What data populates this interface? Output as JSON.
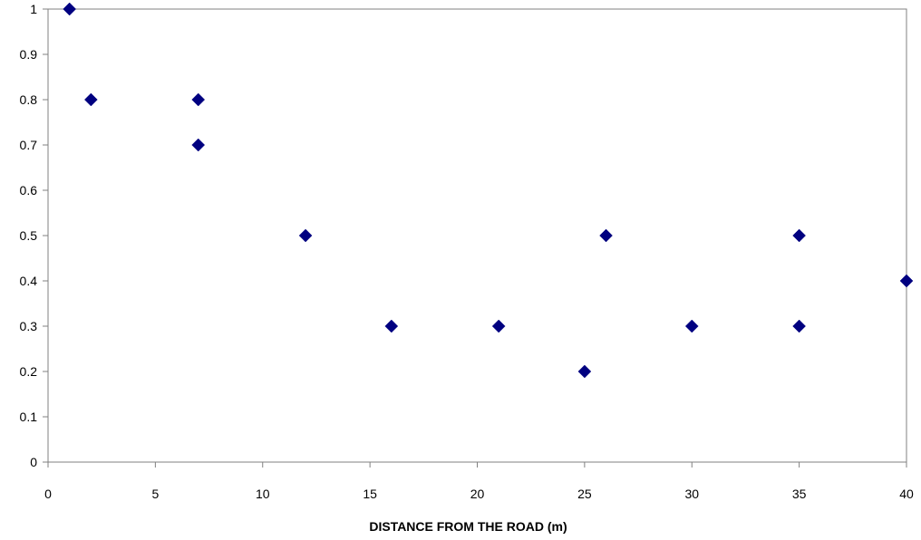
{
  "chart_data": {
    "type": "scatter",
    "title": "",
    "xlabel": "DISTANCE  FROM THE ROAD (m)",
    "ylabel": "",
    "xlim": [
      0,
      40
    ],
    "ylim": [
      0,
      1
    ],
    "xticks": [
      0,
      5,
      10,
      15,
      20,
      25,
      30,
      35,
      40
    ],
    "yticks": [
      0,
      0.1,
      0.2,
      0.3,
      0.4,
      0.5,
      0.6,
      0.7,
      0.8,
      0.9,
      1
    ],
    "xtick_labels": [
      "0",
      "5",
      "10",
      "15",
      "20",
      "25",
      "30",
      "35",
      "40"
    ],
    "ytick_labels": [
      "0",
      "0.1",
      "0.2",
      "0.3",
      "0.4",
      "0.5",
      "0.6",
      "0.7",
      "0.8",
      "0.9",
      "1"
    ],
    "grid": false,
    "legend": "none",
    "marker": "diamond",
    "colors": {
      "marker": "#000080",
      "axis": "#808080",
      "frame": "#808080"
    },
    "series": [
      {
        "points": [
          {
            "x": 1,
            "y": 1
          },
          {
            "x": 2,
            "y": 0.8
          },
          {
            "x": 7,
            "y": 0.8
          },
          {
            "x": 7,
            "y": 0.7
          },
          {
            "x": 12,
            "y": 0.5
          },
          {
            "x": 16,
            "y": 0.3
          },
          {
            "x": 21,
            "y": 0.3
          },
          {
            "x": 25,
            "y": 0.2
          },
          {
            "x": 26,
            "y": 0.5
          },
          {
            "x": 30,
            "y": 0.3
          },
          {
            "x": 35,
            "y": 0.5
          },
          {
            "x": 35,
            "y": 0.3
          },
          {
            "x": 40,
            "y": 0.4
          }
        ]
      }
    ]
  }
}
